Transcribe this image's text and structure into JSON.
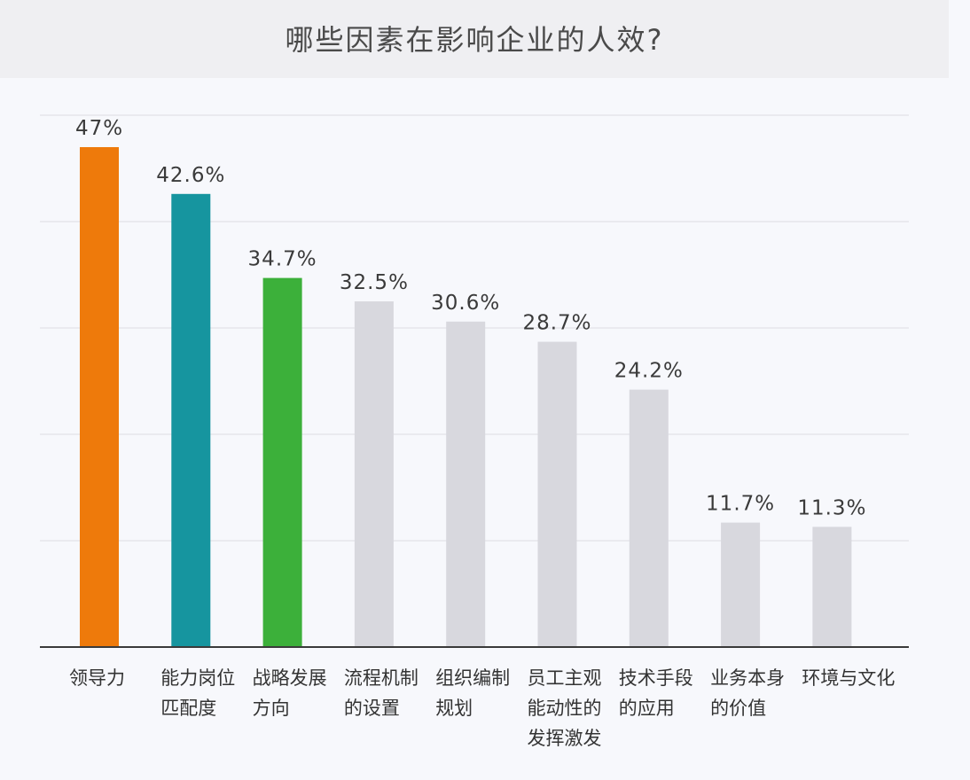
{
  "chart_data": {
    "type": "bar",
    "title": "哪些因素在影响企业的人效?",
    "categories": [
      "领导力",
      "能力岗位\n匹配度",
      "战略发展\n方向",
      "流程机制\n的设置",
      "组织编制\n规划",
      "员工主观\n能动性的\n发挥激发",
      "技术手段\n的应用",
      "业务本身\n的价值",
      "环境与文化"
    ],
    "values": [
      47,
      42.6,
      34.7,
      32.5,
      30.6,
      28.7,
      24.2,
      11.7,
      11.3
    ],
    "value_labels": [
      "47%",
      "42.6%",
      "34.7%",
      "32.5%",
      "30.6%",
      "28.7%",
      "24.2%",
      "11.7%",
      "11.3%"
    ],
    "ylim": [
      0,
      50
    ],
    "grid": true,
    "legend": "none",
    "colors": [
      "#ee7a0b",
      "#16959f",
      "#3cb03a",
      "#d8d8de",
      "#d8d8de",
      "#d8d8de",
      "#d8d8de",
      "#d8d8de",
      "#d8d8de"
    ],
    "xlabel": "",
    "ylabel": ""
  }
}
